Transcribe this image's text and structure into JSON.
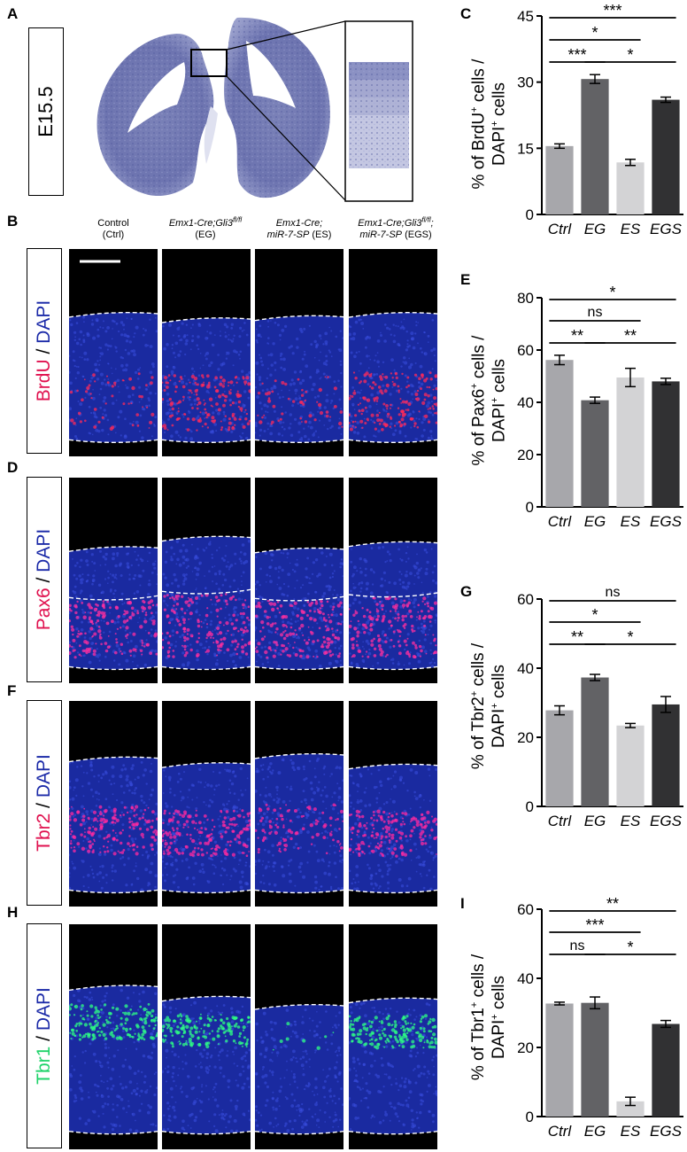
{
  "panel_letters": {
    "A": "A",
    "B": "B",
    "C": "C",
    "D": "D",
    "E": "E",
    "F": "F",
    "G": "G",
    "H": "H",
    "I": "I"
  },
  "stage_label": "E15.5",
  "row_labels": {
    "brdu": {
      "marker": "BrdU",
      "sep": " / ",
      "dapi": "DAPI",
      "marker_color": "#e0114f",
      "dapi_color": "#1b2aa8"
    },
    "pax6": {
      "marker": "Pax6",
      "sep": " / ",
      "dapi": "DAPI",
      "marker_color": "#e0114f",
      "dapi_color": "#1b2aa8"
    },
    "tbr2": {
      "marker": "Tbr2",
      "sep": " / ",
      "dapi": "DAPI",
      "marker_color": "#e0114f",
      "dapi_color": "#1b2aa8"
    },
    "tbr1": {
      "marker": "Tbr1",
      "sep": " / ",
      "dapi": "DAPI",
      "marker_color": "#1fd36a",
      "dapi_color": "#1b2aa8"
    }
  },
  "column_headers": [
    {
      "line1": "Control",
      "line2": "(Ctrl)",
      "sup": ""
    },
    {
      "line1": "Emx1-Cre;Gli3",
      "sup": "fl/fl",
      "line2": "(EG)"
    },
    {
      "line1": "Emx1-Cre;",
      "line2a": "miR-7-SP",
      "line2b": " (ES)"
    },
    {
      "line1": "Emx1-Cre;Gli3",
      "sup": "fl/fl",
      "sup_tail": ";",
      "line2a": "miR-7-SP",
      "line2b": " (EGS)"
    }
  ],
  "colors": {
    "ctrl": "#a7a7ab",
    "eg": "#626265",
    "es": "#d3d3d5",
    "egs": "#313133"
  },
  "y_labels": {
    "C": {
      "l1a": "% of BrdU",
      "l1sup": "+",
      "l1b": " cells /",
      "l2a": "DAPI",
      "l2sup": "+",
      "l2b": " cells"
    },
    "E": {
      "l1a": "% of Pax6",
      "l1sup": "+",
      "l1b": " cells /",
      "l2a": "DAPI",
      "l2sup": "+",
      "l2b": " cells"
    },
    "G": {
      "l1a": "% of Tbr2",
      "l1sup": "+",
      "l1b": " cells /",
      "l2a": "DAPI",
      "l2sup": "+",
      "l2b": " cells"
    },
    "I": {
      "l1a": "% of Tbr1",
      "l1sup": "+",
      "l1b": " cells /",
      "l2a": "DAPI",
      "l2sup": "+",
      "l2b": " cells"
    }
  },
  "chart_data": [
    {
      "panel": "C",
      "type": "bar",
      "categories": [
        "Ctrl",
        "EG",
        "ES",
        "EGS"
      ],
      "values": [
        15.5,
        30.7,
        11.8,
        26.0
      ],
      "errors": [
        0.5,
        1.0,
        0.7,
        0.6
      ],
      "ylim": [
        0,
        45
      ],
      "yticks": [
        0,
        15,
        30,
        45
      ],
      "significance": [
        {
          "from": "Ctrl",
          "to": "EGS",
          "label": "***",
          "level": 1
        },
        {
          "from": "Ctrl",
          "to": "ES",
          "label": "*",
          "level": 2
        },
        {
          "from": "Ctrl",
          "to": "EG",
          "label": "***",
          "level": 3
        },
        {
          "from": "EG",
          "to": "EGS",
          "label": "*",
          "level": 3
        }
      ]
    },
    {
      "panel": "E",
      "type": "bar",
      "categories": [
        "Ctrl",
        "EG",
        "ES",
        "EGS"
      ],
      "values": [
        56.2,
        40.8,
        49.5,
        48.0
      ],
      "errors": [
        1.8,
        1.2,
        3.5,
        1.2
      ],
      "ylim": [
        0,
        80
      ],
      "yticks": [
        0,
        20,
        40,
        60,
        80
      ],
      "significance": [
        {
          "from": "Ctrl",
          "to": "EGS",
          "label": "*",
          "level": 1
        },
        {
          "from": "Ctrl",
          "to": "ES",
          "label": "ns",
          "level": 2
        },
        {
          "from": "Ctrl",
          "to": "EG",
          "label": "**",
          "level": 3
        },
        {
          "from": "EG",
          "to": "EGS",
          "label": "**",
          "level": 3
        }
      ]
    },
    {
      "panel": "G",
      "type": "bar",
      "categories": [
        "Ctrl",
        "EG",
        "ES",
        "EGS"
      ],
      "values": [
        27.8,
        37.3,
        23.4,
        29.5
      ],
      "errors": [
        1.3,
        0.9,
        0.6,
        2.3
      ],
      "ylim": [
        0,
        60
      ],
      "yticks": [
        0,
        20,
        40,
        60
      ],
      "significance": [
        {
          "from": "Ctrl",
          "to": "EGS",
          "label": "ns",
          "level": 1
        },
        {
          "from": "Ctrl",
          "to": "ES",
          "label": "*",
          "level": 2
        },
        {
          "from": "Ctrl",
          "to": "EG",
          "label": "**",
          "level": 3
        },
        {
          "from": "EG",
          "to": "EGS",
          "label": "*",
          "level": 3
        }
      ]
    },
    {
      "panel": "I",
      "type": "bar",
      "categories": [
        "Ctrl",
        "EG",
        "ES",
        "EGS"
      ],
      "values": [
        32.7,
        32.9,
        4.4,
        26.8
      ],
      "errors": [
        0.4,
        1.7,
        1.2,
        1.0
      ],
      "ylim": [
        0,
        60
      ],
      "yticks": [
        0,
        20,
        40,
        60
      ],
      "significance": [
        {
          "from": "Ctrl",
          "to": "EGS",
          "label": "**",
          "level": 1
        },
        {
          "from": "Ctrl",
          "to": "ES",
          "label": "***",
          "level": 2
        },
        {
          "from": "Ctrl",
          "to": "EG",
          "label": "ns",
          "level": 3
        },
        {
          "from": "EG",
          "to": "EGS",
          "label": "*",
          "level": 3
        }
      ]
    }
  ]
}
